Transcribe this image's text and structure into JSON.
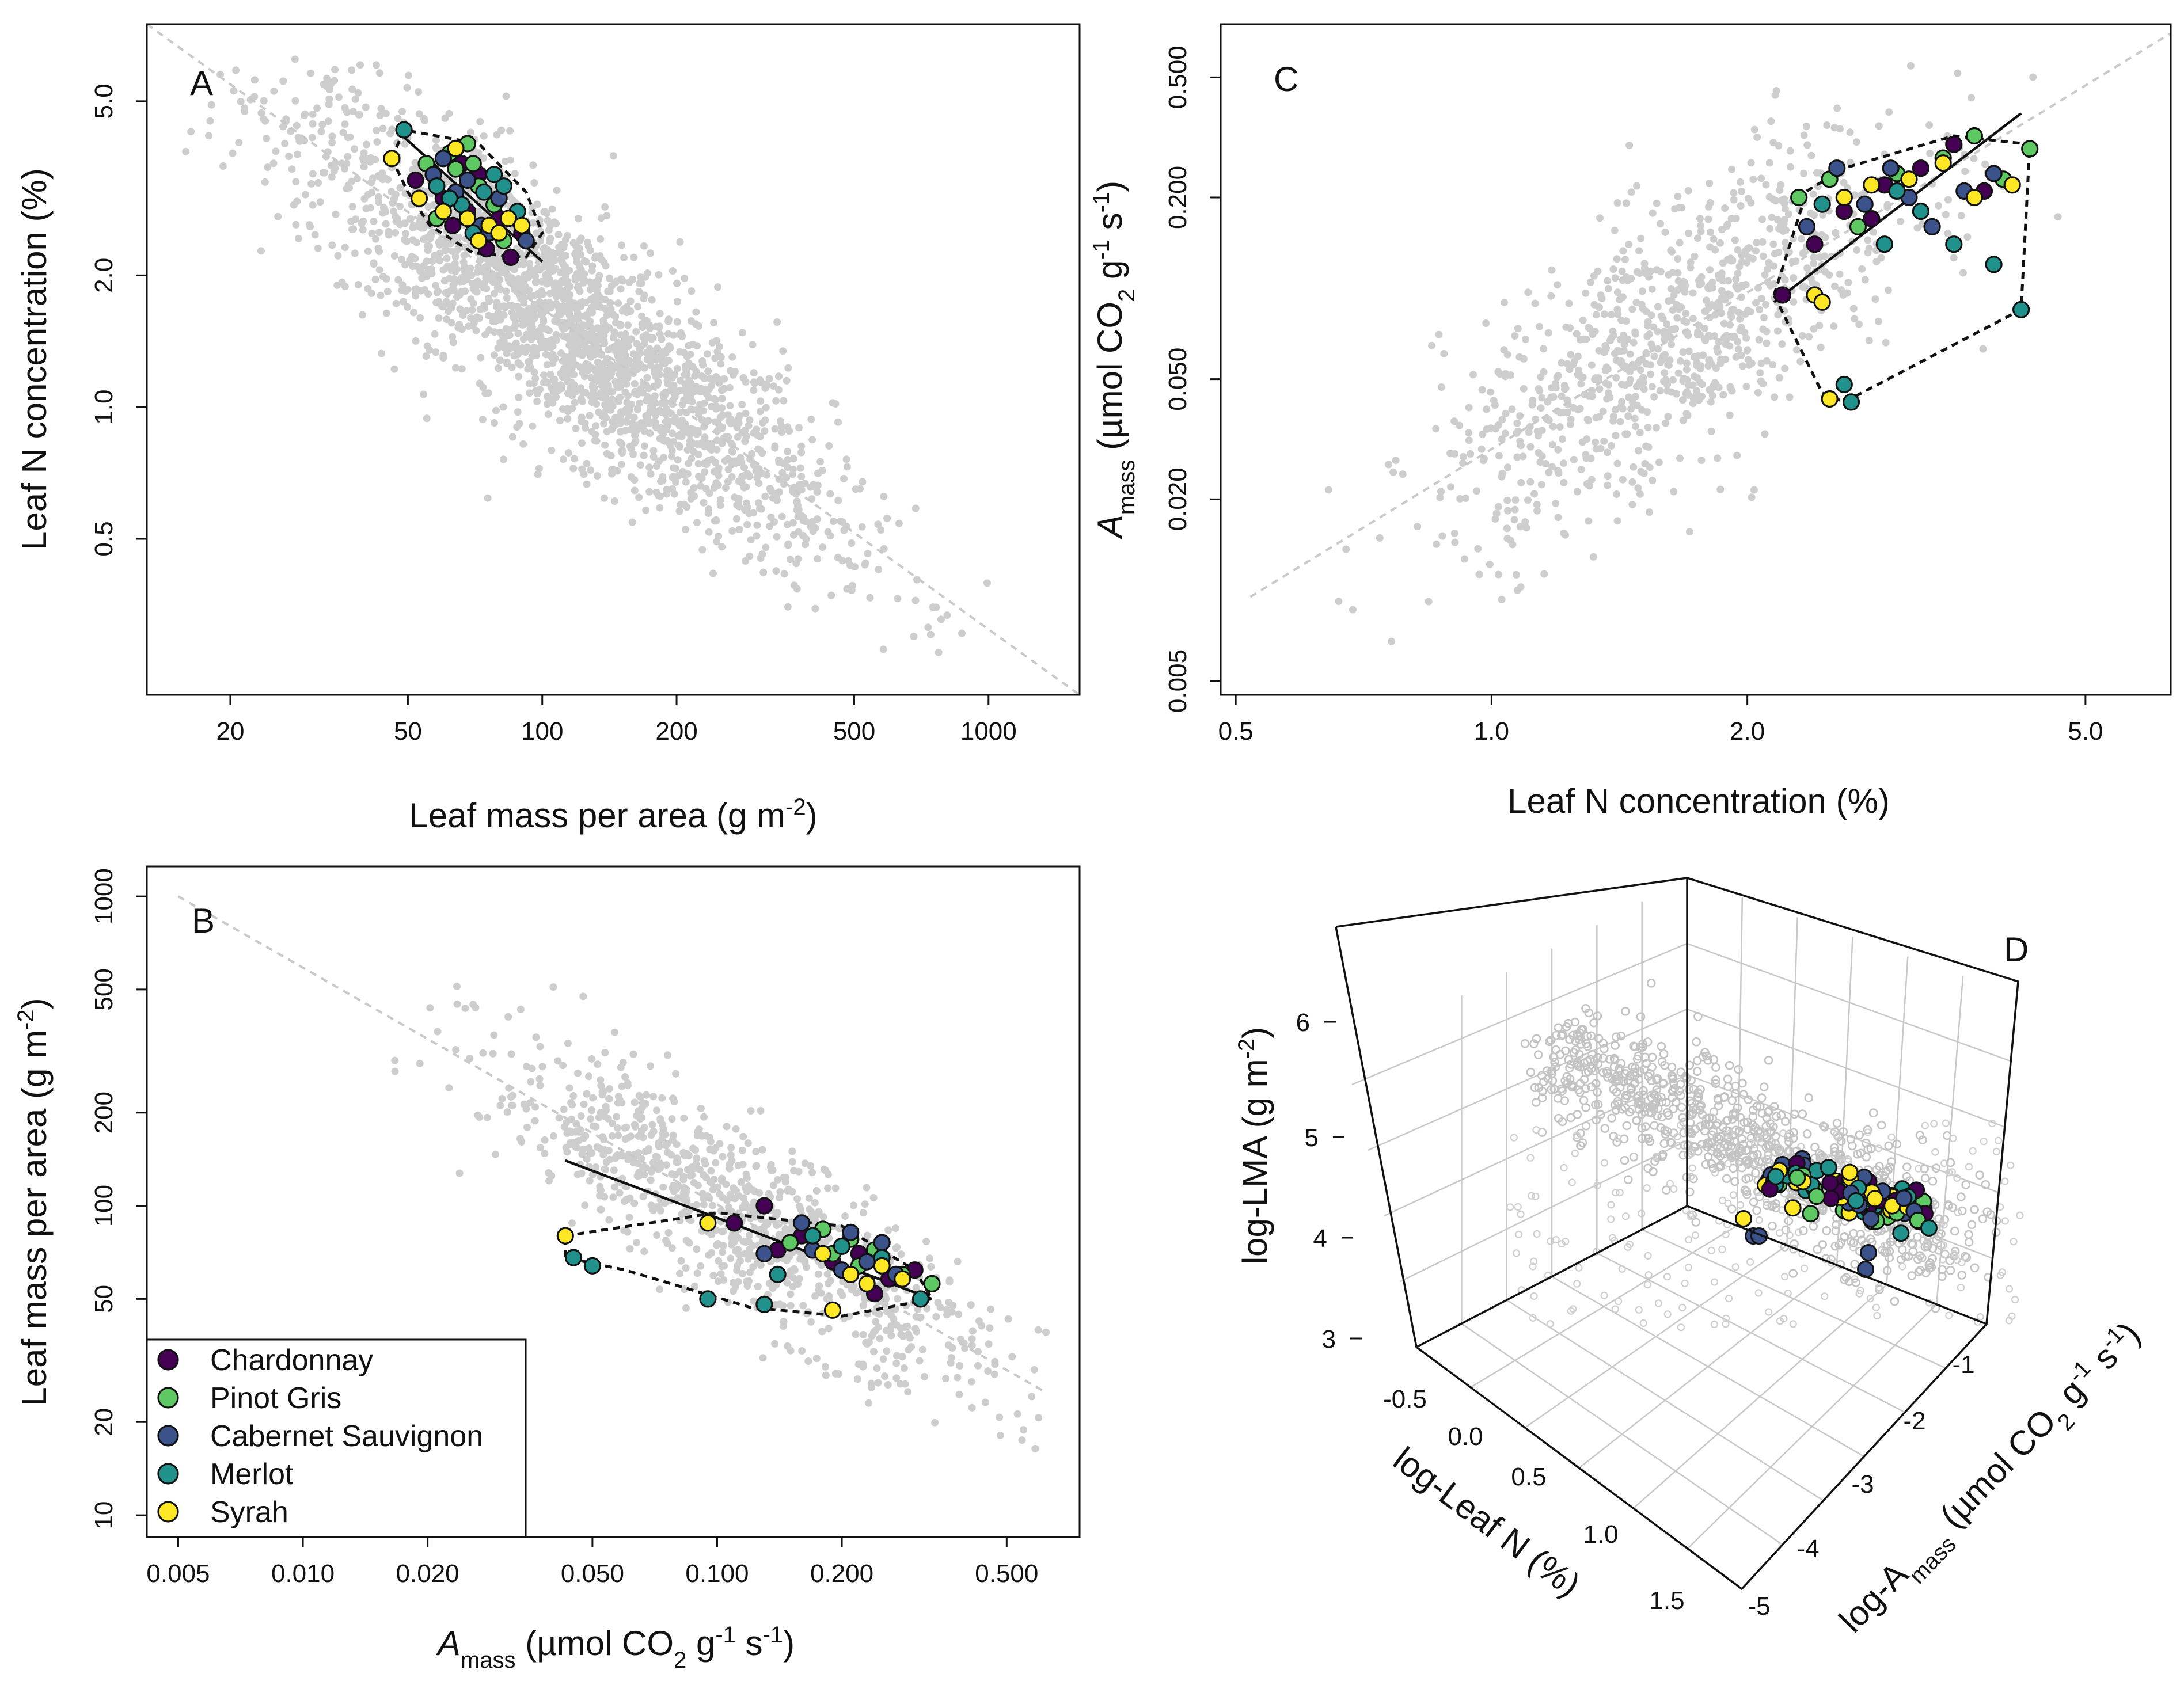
{
  "chart_data": [
    {
      "panel": "A",
      "type": "scatter",
      "xscale": "log",
      "yscale": "log",
      "xlabel": "Leaf mass per area (g m⁻²)",
      "ylabel": "Leaf N concentration (%)",
      "xlim": [
        13,
        1600
      ],
      "ylim": [
        0.22,
        7.5
      ],
      "xticks": [
        20,
        50,
        100,
        200,
        500,
        1000
      ],
      "xtick_labels": [
        "20",
        "50",
        "100",
        "200",
        "500",
        "1000"
      ],
      "yticks": [
        0.5,
        1.0,
        2.0,
        5.0
      ],
      "ytick_labels": [
        "0.5",
        "1.0",
        "2.0",
        "5.0"
      ],
      "background_points": "Global dataset (grey), approx. LMA 17–1400 g m⁻², N 0.3–6.2 %",
      "background_fit": {
        "x": [
          13,
          1600
        ],
        "y": [
          7.5,
          0.22
        ]
      },
      "grape_fit": {
        "x": [
          47,
          100
        ],
        "y": [
          4.3,
          2.15
        ]
      },
      "hull": [
        [
          46,
          3.7
        ],
        [
          49,
          4.3
        ],
        [
          72,
          4.0
        ],
        [
          92,
          3.1
        ],
        [
          100,
          2.5
        ],
        [
          92,
          2.2
        ],
        [
          70,
          2.25
        ],
        [
          56,
          2.6
        ],
        [
          50,
          3.1
        ]
      ],
      "grape_points": {
        "Chardonnay": [
          [
            52,
            3.3
          ],
          [
            60,
            3.0
          ],
          [
            68,
            2.8
          ],
          [
            75,
            2.3
          ],
          [
            85,
            2.2
          ],
          [
            72,
            3.4
          ],
          [
            63,
            2.6
          ],
          [
            90,
            2.5
          ],
          [
            66,
            3.6
          ],
          [
            80,
            2.7
          ]
        ],
        "Pinot Gris": [
          [
            55,
            3.6
          ],
          [
            62,
            3.8
          ],
          [
            68,
            4.0
          ],
          [
            58,
            2.7
          ],
          [
            72,
            3.2
          ],
          [
            64,
            3.5
          ],
          [
            78,
            2.9
          ],
          [
            70,
            3.6
          ],
          [
            82,
            2.4
          ]
        ],
        "Cabernet Sauvignon": [
          [
            57,
            3.4
          ],
          [
            64,
            3.1
          ],
          [
            73,
            2.6
          ],
          [
            80,
            3.0
          ],
          [
            87,
            2.7
          ],
          [
            68,
            3.3
          ],
          [
            92,
            2.4
          ],
          [
            60,
            3.7
          ],
          [
            76,
            2.5
          ]
        ],
        "Merlot": [
          [
            49,
            4.3
          ],
          [
            58,
            3.2
          ],
          [
            66,
            2.9
          ],
          [
            74,
            3.1
          ],
          [
            82,
            3.2
          ],
          [
            70,
            2.5
          ],
          [
            88,
            2.8
          ],
          [
            62,
            3.0
          ],
          [
            78,
            3.4
          ]
        ],
        "Syrah": [
          [
            46,
            3.7
          ],
          [
            53,
            3.0
          ],
          [
            60,
            2.8
          ],
          [
            68,
            2.7
          ],
          [
            76,
            2.6
          ],
          [
            84,
            2.7
          ],
          [
            90,
            2.6
          ],
          [
            64,
            3.9
          ],
          [
            72,
            2.4
          ],
          [
            80,
            2.5
          ]
        ]
      }
    },
    {
      "panel": "C",
      "type": "scatter",
      "xscale": "log",
      "yscale": "log",
      "xlabel": "Leaf N concentration (%)",
      "ylabel": "Amass (µmol CO₂ g⁻¹ s⁻¹)",
      "xlim": [
        0.48,
        6.3
      ],
      "ylim": [
        0.0045,
        0.75
      ],
      "xticks": [
        0.5,
        1.0,
        2.0,
        5.0
      ],
      "xtick_labels": [
        "0.5",
        "1.0",
        "2.0",
        "5.0"
      ],
      "yticks": [
        0.005,
        0.02,
        0.05,
        0.2,
        0.5
      ],
      "ytick_labels": [
        "0.005",
        "0.020",
        "0.050",
        "0.200",
        "0.500"
      ],
      "background_points": "Global dataset (grey), approx. N 0.5–5.5 %, Amass 0.005–0.6",
      "background_fit": {
        "x": [
          0.52,
          6.3
        ],
        "y": [
          0.0095,
          0.7
        ]
      },
      "grape_fit": {
        "x": [
          2.15,
          4.2
        ],
        "y": [
          0.09,
          0.38
        ]
      },
      "hull": [
        [
          2.15,
          0.095
        ],
        [
          2.35,
          0.21
        ],
        [
          2.6,
          0.25
        ],
        [
          3.5,
          0.32
        ],
        [
          4.3,
          0.3
        ],
        [
          4.2,
          0.085
        ],
        [
          2.6,
          0.042
        ],
        [
          2.45,
          0.045
        ]
      ],
      "grape_points": {
        "Chardonnay": [
          [
            2.2,
            0.095
          ],
          [
            2.4,
            0.14
          ],
          [
            2.6,
            0.18
          ],
          [
            2.9,
            0.22
          ],
          [
            3.2,
            0.25
          ],
          [
            3.5,
            0.3
          ],
          [
            2.8,
            0.17
          ],
          [
            3.8,
            0.21
          ]
        ],
        "Pinot Gris": [
          [
            2.3,
            0.2
          ],
          [
            2.5,
            0.23
          ],
          [
            2.7,
            0.16
          ],
          [
            3.0,
            0.24
          ],
          [
            3.4,
            0.27
          ],
          [
            3.7,
            0.32
          ],
          [
            4.0,
            0.23
          ],
          [
            4.3,
            0.29
          ]
        ],
        "Cabernet Sauvignon": [
          [
            2.35,
            0.16
          ],
          [
            2.55,
            0.25
          ],
          [
            2.75,
            0.19
          ],
          [
            3.1,
            0.2
          ],
          [
            3.3,
            0.16
          ],
          [
            3.6,
            0.21
          ],
          [
            2.95,
            0.25
          ],
          [
            3.9,
            0.24
          ]
        ],
        "Merlot": [
          [
            2.45,
            0.19
          ],
          [
            2.6,
            0.048
          ],
          [
            2.65,
            0.042
          ],
          [
            2.9,
            0.14
          ],
          [
            3.2,
            0.18
          ],
          [
            3.5,
            0.14
          ],
          [
            3.9,
            0.12
          ],
          [
            4.2,
            0.085
          ],
          [
            3.0,
            0.21
          ]
        ],
        "Syrah": [
          [
            2.4,
            0.095
          ],
          [
            2.5,
            0.043
          ],
          [
            2.45,
            0.09
          ],
          [
            2.8,
            0.22
          ],
          [
            3.1,
            0.23
          ],
          [
            3.4,
            0.26
          ],
          [
            3.7,
            0.2
          ],
          [
            4.1,
            0.22
          ],
          [
            2.6,
            0.2
          ]
        ]
      }
    },
    {
      "panel": "B",
      "type": "scatter",
      "xscale": "log",
      "yscale": "log",
      "xlabel": "Amass (µmol CO₂ g⁻¹ s⁻¹)",
      "ylabel": "Leaf mass per area (g m⁻²)",
      "xlim": [
        0.0042,
        0.75
      ],
      "ylim": [
        8.5,
        1250
      ],
      "xticks": [
        0.005,
        0.01,
        0.02,
        0.05,
        0.1,
        0.2,
        0.5
      ],
      "xtick_labels": [
        "0.005",
        "0.010",
        "0.020",
        "0.050",
        "0.100",
        "0.200",
        "0.500"
      ],
      "yticks": [
        10,
        20,
        50,
        100,
        200,
        500,
        1000
      ],
      "ytick_labels": [
        "10",
        "20",
        "50",
        "100",
        "200",
        "500",
        "1000"
      ],
      "background_points": "Global dataset (grey), approx. Amass 0.005–0.6, LMA 20–800 g m⁻²",
      "background_fit": {
        "x": [
          0.005,
          0.62
        ],
        "y": [
          1000,
          25
        ]
      },
      "grape_fit": {
        "x": [
          0.043,
          0.33
        ],
        "y": [
          140,
          50
        ]
      },
      "hull": [
        [
          0.043,
          80
        ],
        [
          0.1,
          95
        ],
        [
          0.2,
          86
        ],
        [
          0.3,
          62
        ],
        [
          0.33,
          50
        ],
        [
          0.2,
          44
        ],
        [
          0.12,
          47
        ],
        [
          0.06,
          62
        ],
        [
          0.043,
          68
        ]
      ],
      "grape_points": {
        "Chardonnay": [
          [
            0.11,
            88
          ],
          [
            0.13,
            100
          ],
          [
            0.16,
            80
          ],
          [
            0.19,
            66
          ],
          [
            0.22,
            70
          ],
          [
            0.26,
            58
          ],
          [
            0.3,
            62
          ],
          [
            0.14,
            72
          ],
          [
            0.24,
            52
          ]
        ],
        "Pinot Gris": [
          [
            0.15,
            76
          ],
          [
            0.18,
            84
          ],
          [
            0.21,
            78
          ],
          [
            0.24,
            72
          ],
          [
            0.28,
            60
          ],
          [
            0.33,
            56
          ],
          [
            0.19,
            70
          ],
          [
            0.22,
            64
          ]
        ],
        "Cabernet Sauvignon": [
          [
            0.13,
            70
          ],
          [
            0.17,
            72
          ],
          [
            0.2,
            62
          ],
          [
            0.23,
            66
          ],
          [
            0.27,
            60
          ],
          [
            0.16,
            88
          ],
          [
            0.21,
            82
          ],
          [
            0.25,
            76
          ]
        ],
        "Merlot": [
          [
            0.045,
            68
          ],
          [
            0.05,
            64
          ],
          [
            0.095,
            50
          ],
          [
            0.13,
            48
          ],
          [
            0.17,
            80
          ],
          [
            0.2,
            74
          ],
          [
            0.25,
            68
          ],
          [
            0.14,
            60
          ],
          [
            0.31,
            50
          ]
        ],
        "Syrah": [
          [
            0.043,
            80
          ],
          [
            0.095,
            88
          ],
          [
            0.19,
            46
          ],
          [
            0.21,
            60
          ],
          [
            0.25,
            64
          ],
          [
            0.18,
            70
          ],
          [
            0.23,
            56
          ],
          [
            0.28,
            58
          ]
        ]
      },
      "legend": {
        "position": "bottom-left",
        "entries": [
          {
            "label": "Chardonnay",
            "color": "#440154"
          },
          {
            "label": "Pinot Gris",
            "color": "#5ec962"
          },
          {
            "label": "Cabernet Sauvignon",
            "color": "#3b528b"
          },
          {
            "label": "Merlot",
            "color": "#21918c"
          },
          {
            "label": "Syrah",
            "color": "#fde725"
          }
        ]
      }
    },
    {
      "panel": "D",
      "type": "scatter3d",
      "xlabel": "log-Leaf N (%)",
      "ylabel": "log-Amass (µmol CO₂ g⁻¹ s⁻¹)",
      "zlabel": "log-LMA (g m⁻²)",
      "xticks": [
        -0.5,
        0.0,
        0.5,
        1.0,
        1.5
      ],
      "xtick_labels": [
        "-0.5",
        "0.0",
        "0.5",
        "1.0",
        "1.5"
      ],
      "yticks": [
        -5,
        -4,
        -3,
        -2,
        -1
      ],
      "ytick_labels": [
        "-5",
        "-4",
        "-3",
        "-2",
        "-1"
      ],
      "zticks": [
        3,
        4,
        5,
        6
      ],
      "ztick_labels": [
        "3",
        "4",
        "5",
        "6"
      ],
      "background_points": "Global dataset (grey open circles)",
      "grape_cluster": "Grapevine points clustered near log-N ≈ 1.0, log-Amass ≈ -1.6, log-LMA ≈ 4.3"
    }
  ],
  "colors": {
    "Chardonnay": "#440154",
    "Pinot Gris": "#5ec962",
    "Cabernet Sauvignon": "#3b528b",
    "Merlot": "#21918c",
    "Syrah": "#fde725",
    "background": "#cccccc"
  },
  "text": {
    "A": {
      "letter": "A",
      "xlabel_main": "Leaf mass per area (g m",
      "xlabel_sup": "-2",
      "xlabel_close": ")",
      "ylabel": "Leaf N concentration (%)"
    },
    "C": {
      "letter": "C",
      "xlabel": "Leaf N concentration (%)",
      "ylabel_A": "A",
      "ylabel_sub": "mass",
      "ylabel_mid": " (µmol CO",
      "ylabel_sub2": "2",
      "ylabel_g": " g",
      "ylabel_sup1": "-1",
      "ylabel_s": " s",
      "ylabel_sup2": "-1",
      "ylabel_close": ")"
    },
    "B": {
      "letter": "B",
      "xlabel_A": "A",
      "xlabel_sub": "mass",
      "xlabel_mid": " (µmol CO",
      "xlabel_sub2": "2",
      "xlabel_g": " g",
      "xlabel_sup1": "-1",
      "xlabel_s": " s",
      "xlabel_sup2": "-1",
      "xlabel_close": ")",
      "ylabel_main": "Leaf mass per area (g m",
      "ylabel_sup": "-2",
      "ylabel_close": ")"
    },
    "D": {
      "letter": "D",
      "zlabel_main": "log-LMA (g m",
      "zlabel_sup": "-2",
      "zlabel_close": ")",
      "xlabel": "log-Leaf N (%)",
      "ylabel_main": "log-A",
      "ylabel_sub": "mass",
      "ylabel_mid": " (µmol CO",
      "ylabel_sub2": "2",
      "ylabel_g": " g",
      "ylabel_sup1": "-1",
      "ylabel_s": " s",
      "ylabel_sup2": "-1",
      "ylabel_close": ")"
    }
  }
}
